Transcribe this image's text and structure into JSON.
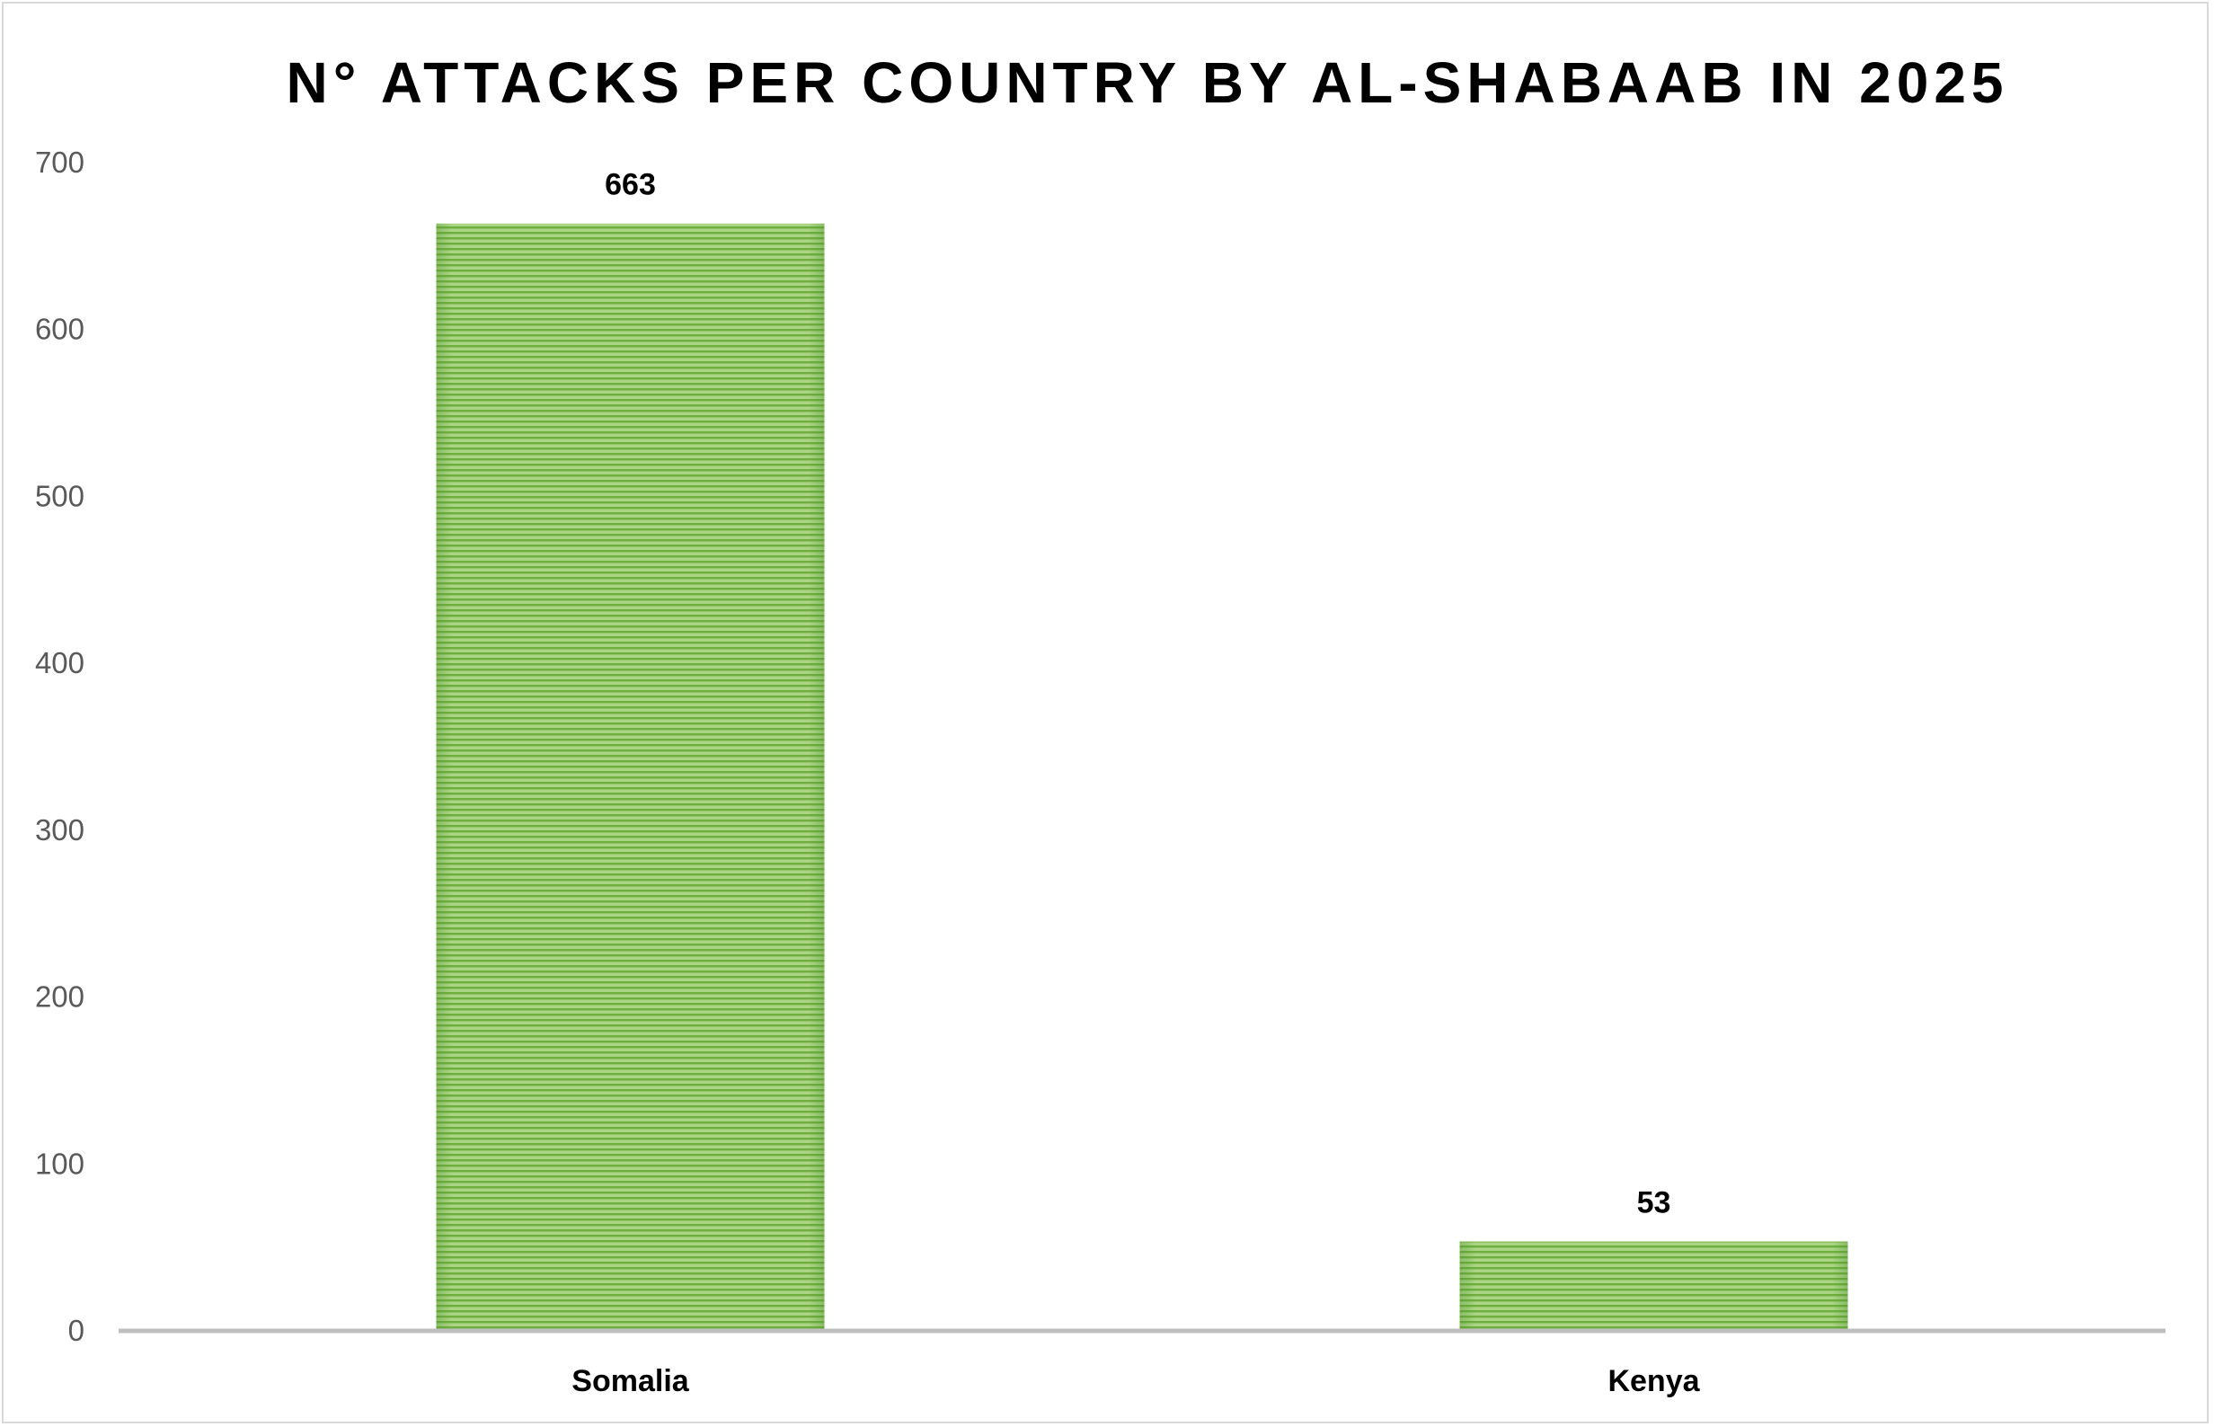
{
  "chart_data": {
    "type": "bar",
    "title": "N° ATTACKS PER COUNTRY BY AL-SHABAAB IN 2025",
    "categories": [
      "Somalia",
      "Kenya"
    ],
    "values": [
      663,
      53
    ],
    "data_labels": [
      "663",
      "53"
    ],
    "ylim": [
      0,
      700
    ],
    "yticks": [
      0,
      100,
      200,
      300,
      400,
      500,
      600,
      700
    ],
    "ytick_labels": [
      "0",
      "100",
      "200",
      "300",
      "400",
      "500",
      "600",
      "700"
    ],
    "xlabel": "",
    "ylabel": "",
    "grid": false,
    "legend": "none",
    "bar_color": "#8cc460",
    "bar_stripe_color": "#6aaa3a",
    "axis_color": "#bfbfbf"
  }
}
